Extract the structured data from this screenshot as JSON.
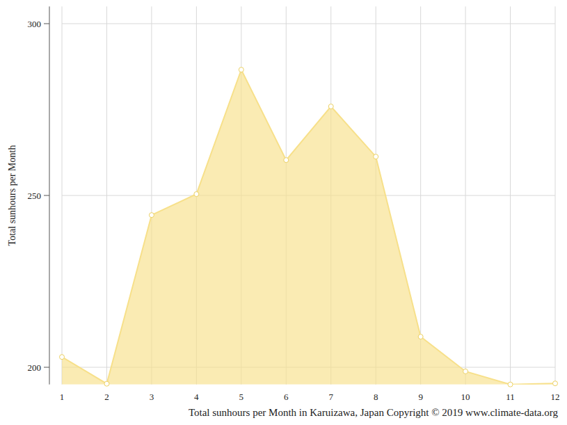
{
  "chart_data": {
    "type": "area",
    "title": "Total sunhours per Month in Karuizawa, Japan Copyright © 2019 www.climate-data.org",
    "y_label": "Total sunhours per Month",
    "x": [
      1,
      2,
      3,
      4,
      5,
      6,
      7,
      8,
      9,
      10,
      11,
      12
    ],
    "values": [
      203.0,
      195.2,
      244.3,
      250.4,
      286.6,
      260.3,
      275.9,
      261.3,
      208.9,
      198.8,
      195.0,
      195.3
    ],
    "color": "#f7e08a",
    "marker": "circle",
    "xlim": [
      1,
      12
    ],
    "xticks": [
      1,
      2,
      3,
      4,
      5,
      6,
      7,
      8,
      9,
      10,
      11,
      12
    ],
    "ylim": [
      195,
      305
    ],
    "yticks": [
      200,
      250,
      300
    ],
    "grid": true
  }
}
